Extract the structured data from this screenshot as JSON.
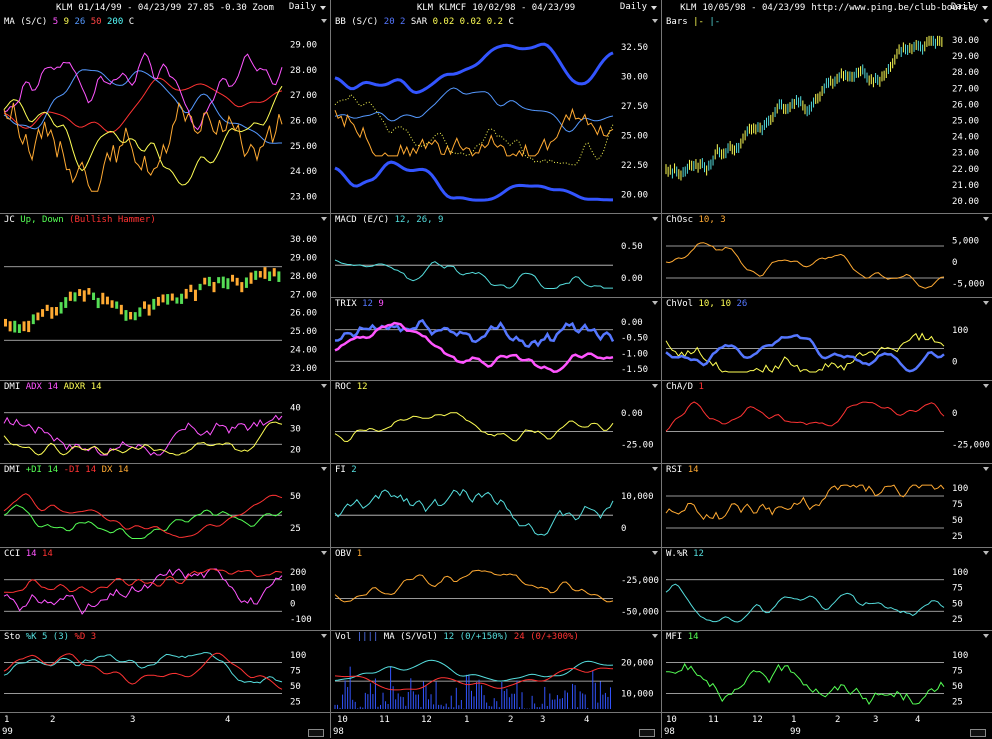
{
  "columns": [
    {
      "title": {
        "symbol": "KLM",
        "range": "01/14/99 - 04/23/99",
        "extra": "27.85   -0.30   Zoom"
      },
      "period": "Daily",
      "panels": [
        {
          "label": "MA (S/C)",
          "params": [
            {
              "t": "5",
              "c": "#ff55ff"
            },
            {
              "t": "9",
              "c": "#ffff55"
            },
            {
              "t": "26",
              "c": "#5599ff"
            },
            {
              "t": "50",
              "c": "#ff4444"
            },
            {
              "t": "200",
              "c": "#55ffff"
            },
            {
              "t": "C",
              "c": "#ffffff"
            }
          ],
          "ticks": [
            "29.00",
            "28.00",
            "27.00",
            "26.00",
            "25.00",
            "24.00",
            "23.00"
          ]
        },
        {
          "label": "JC",
          "params": [
            {
              "t": "Up, Down",
              "c": "#55ff55"
            },
            {
              "t": "(Bullish Hammer)",
              "c": "#ff3333"
            }
          ],
          "ticks": [
            "30.00",
            "29.00",
            "28.00",
            "27.00",
            "26.00",
            "25.00",
            "24.00",
            "23.00"
          ]
        },
        {
          "label": "DMI",
          "params": [
            {
              "t": "ADX 14",
              "c": "#ff55ff"
            },
            {
              "t": "ADXR 14",
              "c": "#ffff55"
            }
          ],
          "ticks": [
            "40",
            "30",
            "20"
          ]
        },
        {
          "label": "DMI",
          "params": [
            {
              "t": "+DI 14",
              "c": "#55ff55"
            },
            {
              "t": "-DI 14",
              "c": "#ff3333"
            },
            {
              "t": "DX 14",
              "c": "#ffaa33"
            }
          ],
          "ticks": [
            "50",
            "25"
          ]
        },
        {
          "label": "CCI",
          "params": [
            {
              "t": "14",
              "c": "#ff55ff"
            },
            {
              "t": "14",
              "c": "#ff3333"
            }
          ],
          "ticks": [
            "200",
            "100",
            "0",
            "-100"
          ]
        },
        {
          "label": "Sto",
          "params": [
            {
              "t": "%K 5 (3)",
              "c": "#55dddd"
            },
            {
              "t": "%D 3",
              "c": "#ff3333"
            }
          ],
          "ticks": [
            "100",
            "75",
            "50",
            "25"
          ]
        }
      ],
      "xlabels": [
        "1",
        "2",
        "3",
        "4"
      ],
      "year": "99"
    },
    {
      "title": {
        "symbol": "KLM",
        "range": "KLMCF",
        "extra": "10/02/98 - 04/23/99"
      },
      "period": "Daily",
      "panels": [
        {
          "label": "BB (S/C)",
          "params": [
            {
              "t": "20",
              "c": "#5577ff"
            },
            {
              "t": "2",
              "c": "#5577ff"
            },
            {
              "t": "SAR",
              "c": "#ffffff"
            },
            {
              "t": "0.02",
              "c": "#ffff55"
            },
            {
              "t": "0.02",
              "c": "#ffff55"
            },
            {
              "t": "0.2",
              "c": "#ffff55"
            },
            {
              "t": "C",
              "c": "#ffffff"
            }
          ],
          "ticks": [
            "32.50",
            "30.00",
            "27.50",
            "25.00",
            "22.50",
            "20.00"
          ]
        },
        {
          "label": "MACD (E/C)",
          "params": [
            {
              "t": "12, 26, 9",
              "c": "#55dddd"
            }
          ],
          "ticks": [
            "0.50",
            "0.00"
          ]
        },
        {
          "label": "TRIX",
          "params": [
            {
              "t": "12",
              "c": "#5577ff"
            },
            {
              "t": "9",
              "c": "#ff55ff"
            }
          ],
          "ticks": [
            "0.00",
            "-0.50",
            "-1.00",
            "-1.50"
          ]
        },
        {
          "label": "ROC",
          "params": [
            {
              "t": "12",
              "c": "#ffff55"
            }
          ],
          "ticks": [
            "0.00",
            "-25.00"
          ]
        },
        {
          "label": "FI",
          "params": [
            {
              "t": "2",
              "c": "#55dddd"
            }
          ],
          "ticks": [
            "10,000",
            "0"
          ]
        },
        {
          "label": "OBV",
          "params": [
            {
              "t": "1",
              "c": "#ffaa33"
            }
          ],
          "ticks": [
            "-25,000",
            "-50,000"
          ]
        },
        {
          "label": "Vol",
          "params": [
            {
              "t": "||||",
              "c": "#5577ff"
            },
            {
              "t": "MA  (S/Vol)",
              "c": "#ffffff"
            },
            {
              "t": "12 (0/+150%)",
              "c": "#55dddd"
            },
            {
              "t": "24 (0/+300%)",
              "c": "#ff3333"
            }
          ],
          "ticks": [
            "20,000",
            "10,000"
          ]
        }
      ],
      "xlabels": [
        "10",
        "11",
        "12",
        "1",
        "2",
        "3",
        "4"
      ],
      "year": "98"
    },
    {
      "title": {
        "symbol": "KLM",
        "range": "10/05/98 - 04/23/99",
        "extra": "http://www.ping.be/club-bourse"
      },
      "period": "Daily",
      "panels": [
        {
          "label": "Bars",
          "params": [
            {
              "t": "|-",
              "c": "#ffff55"
            },
            {
              "t": "|-",
              "c": "#55dddd"
            }
          ],
          "ticks": [
            "30.00",
            "29.00",
            "28.00",
            "27.00",
            "26.00",
            "25.00",
            "24.00",
            "23.00",
            "22.00",
            "21.00",
            "20.00"
          ]
        },
        {
          "label": "ChOsc",
          "params": [
            {
              "t": "10, 3",
              "c": "#ffaa33"
            }
          ],
          "ticks": [
            "5,000",
            "0",
            "-5,000"
          ]
        },
        {
          "label": "ChVol",
          "params": [
            {
              "t": "10, 10",
              "c": "#ffff55"
            },
            {
              "t": "26",
              "c": "#5577ff"
            }
          ],
          "ticks": [
            "100",
            "0"
          ]
        },
        {
          "label": "ChA/D",
          "params": [
            {
              "t": "1",
              "c": "#ff3333"
            }
          ],
          "ticks": [
            "0",
            "-25,000"
          ]
        },
        {
          "label": "RSI",
          "params": [
            {
              "t": "14",
              "c": "#ffaa33"
            }
          ],
          "ticks": [
            "100",
            "75",
            "50",
            "25"
          ]
        },
        {
          "label": "W.%R",
          "params": [
            {
              "t": "12",
              "c": "#55dddd"
            }
          ],
          "ticks": [
            "100",
            "75",
            "50",
            "25"
          ]
        },
        {
          "label": "MFI",
          "params": [
            {
              "t": "14",
              "c": "#55ff55"
            }
          ],
          "ticks": [
            "100",
            "75",
            "50",
            "25"
          ]
        }
      ],
      "xlabels": [
        "10",
        "11",
        "12",
        "1",
        "2",
        "3",
        "4"
      ],
      "year": "98",
      "year2": "99"
    }
  ]
}
